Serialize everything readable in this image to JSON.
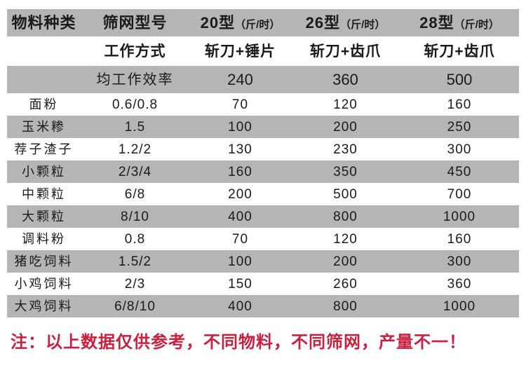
{
  "colors": {
    "stripe_gray": "#b5b5b5",
    "text": "#1a1a1a",
    "note_red": "#cc1f3d",
    "background": "#ffffff"
  },
  "table": {
    "header": {
      "material": "物料种类",
      "screen": "筛网型号",
      "models": [
        {
          "name": "20型",
          "unit": "（斤/时）"
        },
        {
          "name": "26型",
          "unit": "（斤/时）"
        },
        {
          "name": "28型",
          "unit": "（斤/时）"
        }
      ]
    },
    "work_mode": {
      "label": "工作方式",
      "values": [
        "斩刀+锤片",
        "斩刀+齿爪",
        "斩刀+齿爪"
      ]
    },
    "efficiency": {
      "label": "均工作效率",
      "values": [
        "240",
        "360",
        "500"
      ]
    },
    "rows": [
      {
        "material": "面粉",
        "screen": "0.6/0.8",
        "values": [
          "70",
          "120",
          "160"
        ]
      },
      {
        "material": "玉米糁",
        "screen": "1.5",
        "values": [
          "100",
          "200",
          "250"
        ]
      },
      {
        "material": "荐子渣子",
        "screen": "1.2/2",
        "values": [
          "130",
          "230",
          "300"
        ]
      },
      {
        "material": "小颗粒",
        "screen": "2/3/4",
        "values": [
          "160",
          "350",
          "450"
        ]
      },
      {
        "material": "中颗粒",
        "screen": "6/8",
        "values": [
          "200",
          "500",
          "700"
        ]
      },
      {
        "material": "大颗粒",
        "screen": "8/10",
        "values": [
          "400",
          "800",
          "1000"
        ]
      },
      {
        "material": "调料粉",
        "screen": "0.8",
        "values": [
          "70",
          "120",
          "160"
        ]
      },
      {
        "material": "猪吃饲料",
        "screen": "1.5/2",
        "values": [
          "100",
          "200",
          "300"
        ]
      },
      {
        "material": "小鸡饲料",
        "screen": "2/3",
        "values": [
          "150",
          "260",
          "360"
        ]
      },
      {
        "material": "大鸡饲料",
        "screen": "6/8/10",
        "values": [
          "400",
          "800",
          "1000"
        ]
      }
    ]
  },
  "note": "注：以上数据仅供参考，不同物料，不同筛网，产量不一！"
}
